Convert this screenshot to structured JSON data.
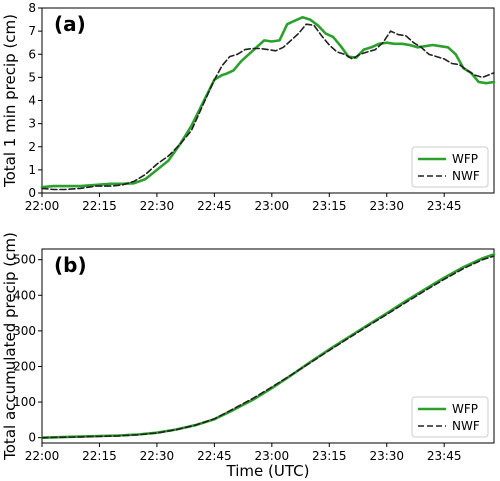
{
  "chart_data": [
    {
      "type": "line",
      "panel_label": "(a)",
      "ylabel": "Total 1 min precip (cm)",
      "xlabel": "",
      "xlim": [
        0,
        118
      ],
      "ylim": [
        0,
        8
      ],
      "xtick_values": [
        0,
        15,
        30,
        45,
        60,
        75,
        90,
        105
      ],
      "xtick_labels": [
        "22:00",
        "22:15",
        "22:30",
        "22:45",
        "23:00",
        "23:15",
        "23:30",
        "23:45"
      ],
      "ytick_values": [
        0,
        1,
        2,
        3,
        4,
        5,
        6,
        7,
        8
      ],
      "ytick_labels": [
        "0",
        "1",
        "2",
        "3",
        "4",
        "5",
        "6",
        "7",
        "8"
      ],
      "legend_position": "lower-right",
      "series": [
        {
          "name": "WFP",
          "color": "#2ca02c",
          "style": "solid",
          "x": [
            0,
            3,
            6,
            10,
            14,
            18,
            21,
            24,
            27,
            30,
            33,
            36,
            39,
            42,
            45,
            47,
            48,
            50,
            52,
            54,
            56,
            58,
            60,
            62,
            64,
            66,
            68,
            70,
            72,
            74,
            76,
            78,
            80,
            82,
            84,
            86,
            88,
            90,
            92,
            94,
            96,
            98,
            100,
            102,
            104,
            106,
            108,
            110,
            112,
            114,
            116,
            118
          ],
          "y": [
            0.25,
            0.3,
            0.3,
            0.3,
            0.35,
            0.4,
            0.4,
            0.42,
            0.6,
            1.0,
            1.4,
            2.1,
            2.9,
            3.9,
            4.9,
            5.1,
            5.15,
            5.3,
            5.7,
            6.0,
            6.3,
            6.6,
            6.55,
            6.6,
            7.3,
            7.45,
            7.6,
            7.5,
            7.25,
            6.9,
            6.75,
            6.35,
            5.9,
            5.85,
            6.2,
            6.3,
            6.45,
            6.5,
            6.45,
            6.45,
            6.4,
            6.3,
            6.35,
            6.4,
            6.35,
            6.3,
            6.0,
            5.4,
            5.2,
            4.8,
            4.75,
            4.8
          ]
        },
        {
          "name": "NWF",
          "color": "#222222",
          "style": "dashed",
          "x": [
            0,
            3,
            6,
            10,
            14,
            18,
            21,
            24,
            27,
            30,
            33,
            36,
            39,
            42,
            45,
            47,
            49,
            51,
            53,
            55,
            57,
            59,
            61,
            63,
            65,
            67,
            69,
            71,
            73,
            75,
            77,
            79,
            81,
            83,
            85,
            87,
            89,
            91,
            93,
            95,
            97,
            99,
            101,
            103,
            105,
            107,
            109,
            111,
            113,
            115,
            118
          ],
          "y": [
            0.2,
            0.15,
            0.15,
            0.2,
            0.3,
            0.3,
            0.35,
            0.5,
            0.8,
            1.25,
            1.6,
            2.1,
            2.7,
            3.8,
            4.9,
            5.5,
            5.9,
            6.0,
            6.2,
            6.25,
            6.25,
            6.2,
            6.15,
            6.3,
            6.6,
            6.9,
            7.3,
            7.25,
            6.8,
            6.4,
            6.1,
            6.0,
            5.8,
            6.0,
            6.1,
            6.2,
            6.5,
            7.0,
            6.85,
            6.8,
            6.5,
            6.3,
            6.0,
            5.9,
            5.8,
            5.6,
            5.55,
            5.3,
            5.1,
            5.0,
            5.2
          ]
        }
      ]
    },
    {
      "type": "line",
      "panel_label": "(b)",
      "ylabel": "Total accumulated precip (cm)",
      "xlabel": "Time (UTC)",
      "xlim": [
        0,
        118
      ],
      "ylim": [
        -15,
        530
      ],
      "xtick_values": [
        0,
        15,
        30,
        45,
        60,
        75,
        90,
        105
      ],
      "xtick_labels": [
        "22:00",
        "22:15",
        "22:30",
        "22:45",
        "23:00",
        "23:15",
        "23:30",
        "23:45"
      ],
      "ytick_values": [
        0,
        100,
        200,
        300,
        400,
        500
      ],
      "ytick_labels": [
        "0",
        "100",
        "200",
        "300",
        "400",
        "500"
      ],
      "legend_position": "lower-right",
      "series": [
        {
          "name": "WFP",
          "color": "#2ca02c",
          "style": "solid",
          "x": [
            0,
            10,
            20,
            25,
            30,
            35,
            40,
            45,
            50,
            55,
            60,
            65,
            70,
            75,
            80,
            85,
            90,
            95,
            100,
            105,
            110,
            115,
            118
          ],
          "y": [
            0,
            3,
            6,
            9,
            14,
            23,
            35,
            52,
            78,
            106,
            139,
            175,
            212,
            248,
            282,
            316,
            349,
            384,
            417,
            449,
            479,
            504,
            515
          ]
        },
        {
          "name": "NWF",
          "color": "#222222",
          "style": "dashed",
          "x": [
            0,
            10,
            20,
            25,
            30,
            35,
            40,
            45,
            50,
            55,
            60,
            65,
            70,
            75,
            80,
            85,
            90,
            95,
            100,
            105,
            110,
            115,
            118
          ],
          "y": [
            0,
            2,
            5,
            8,
            13,
            22,
            35,
            53,
            81,
            110,
            142,
            176,
            210,
            245,
            279,
            313,
            346,
            380,
            413,
            445,
            475,
            500,
            510
          ]
        }
      ]
    }
  ]
}
